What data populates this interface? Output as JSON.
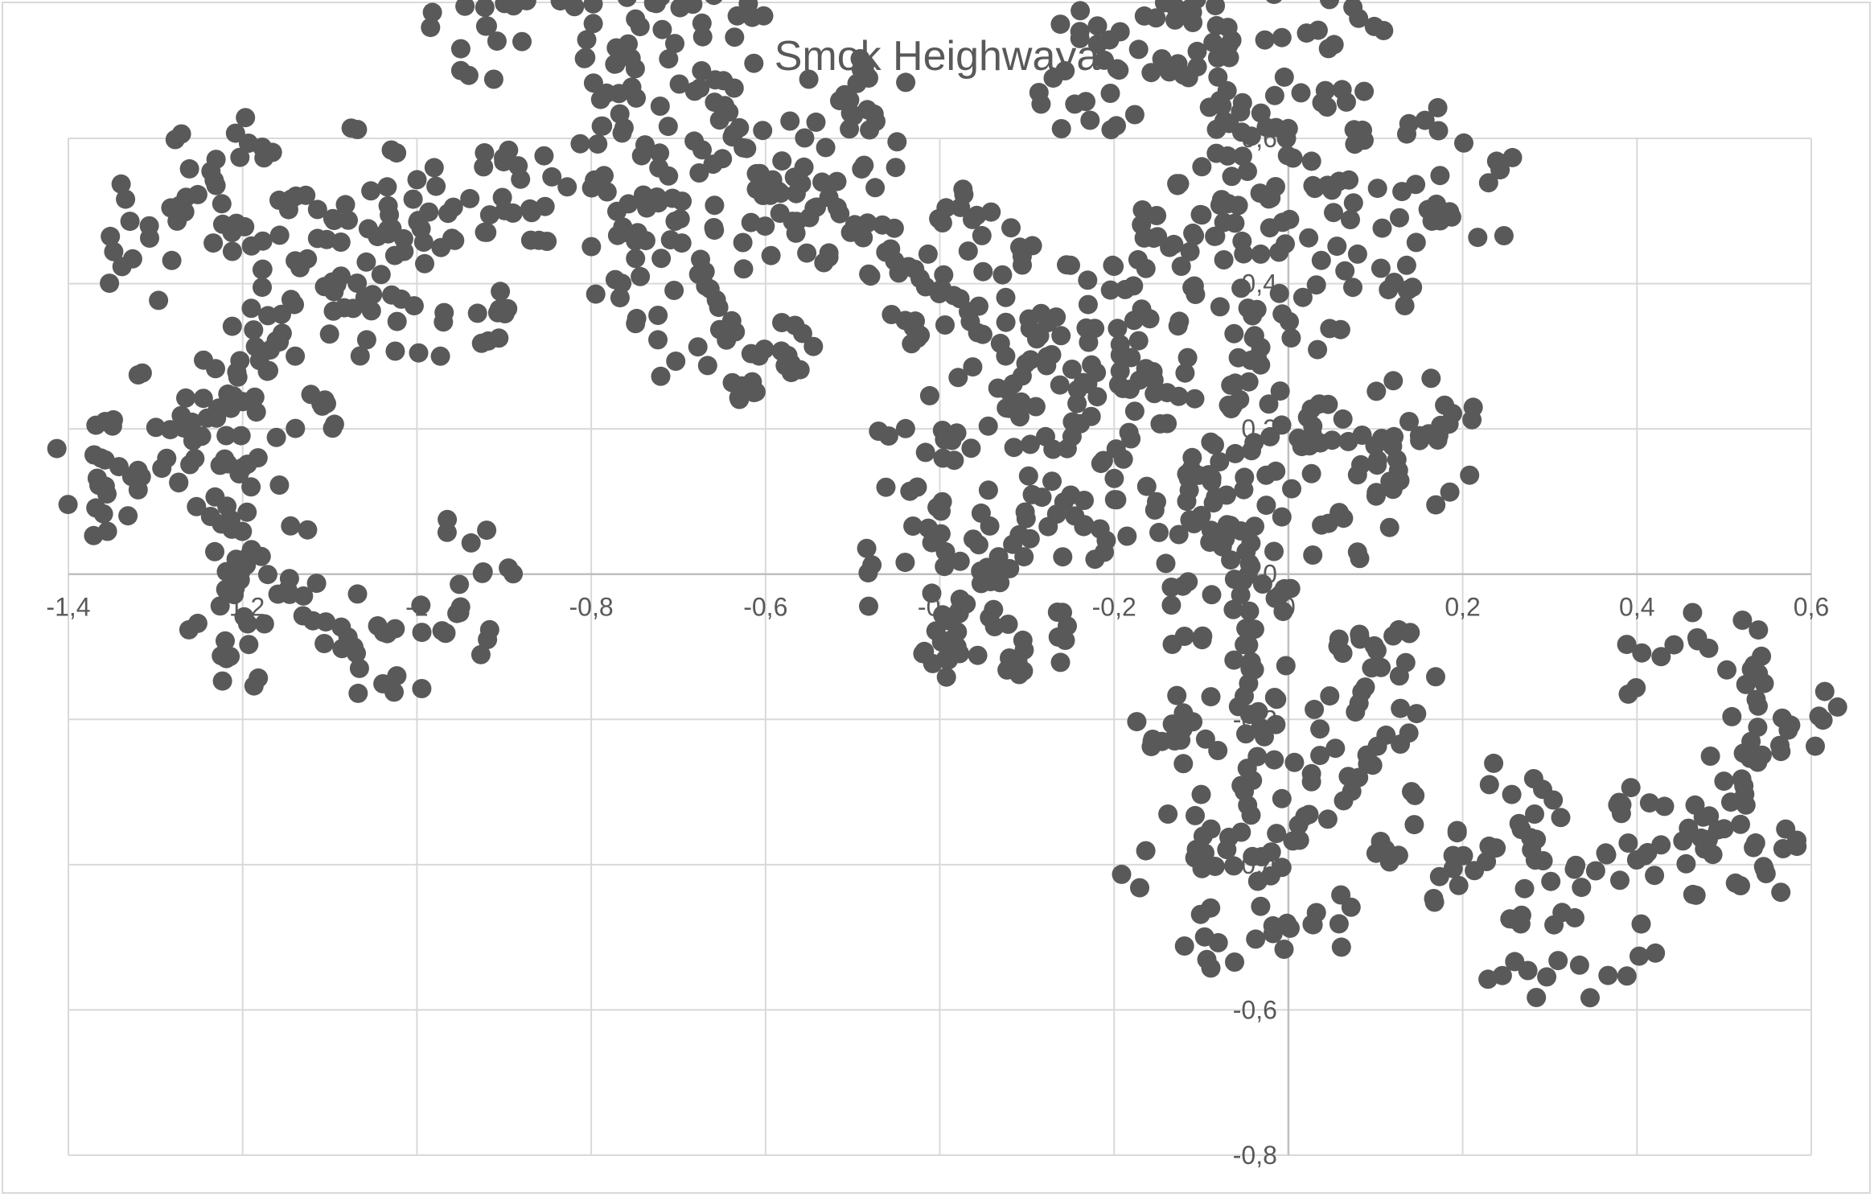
{
  "chart_data": {
    "type": "scatter",
    "title": "Smok Heighwaya",
    "xlabel": "",
    "ylabel": "",
    "xlim": [
      -1.4,
      0.6
    ],
    "ylim": [
      -0.8,
      0.6
    ],
    "x_ticks": [
      -1.4,
      -1.2,
      -1,
      -0.8,
      -0.6,
      -0.4,
      -0.2,
      0,
      0.2,
      0.4,
      0.6
    ],
    "y_ticks": [
      -0.8,
      -0.6,
      -0.4,
      -0.2,
      0,
      0.2,
      0.4,
      0.6
    ],
    "x_tick_labels": [
      "-1,4",
      "-1,2",
      "-1",
      "-0,8",
      "-0,6",
      "-0,4",
      "-0,2",
      "0",
      "0,2",
      "0,4",
      "0,6"
    ],
    "y_tick_labels": [
      "-0,8",
      "-0,6",
      "-0,4",
      "-0,2",
      "0",
      "0,2",
      "0,4",
      "0,6"
    ],
    "grid": true,
    "legend": "none",
    "marker_color": "#595959",
    "grid_color": "#d9d9d9",
    "axis_color": "#bfbfbf",
    "series": [
      {
        "generator": "heighway-dragon-ifs",
        "count": 1500,
        "endpoints": [
          [
            -0.98,
            0.03
          ],
          [
            0.42,
            -0.15
          ]
        ]
      }
    ]
  }
}
